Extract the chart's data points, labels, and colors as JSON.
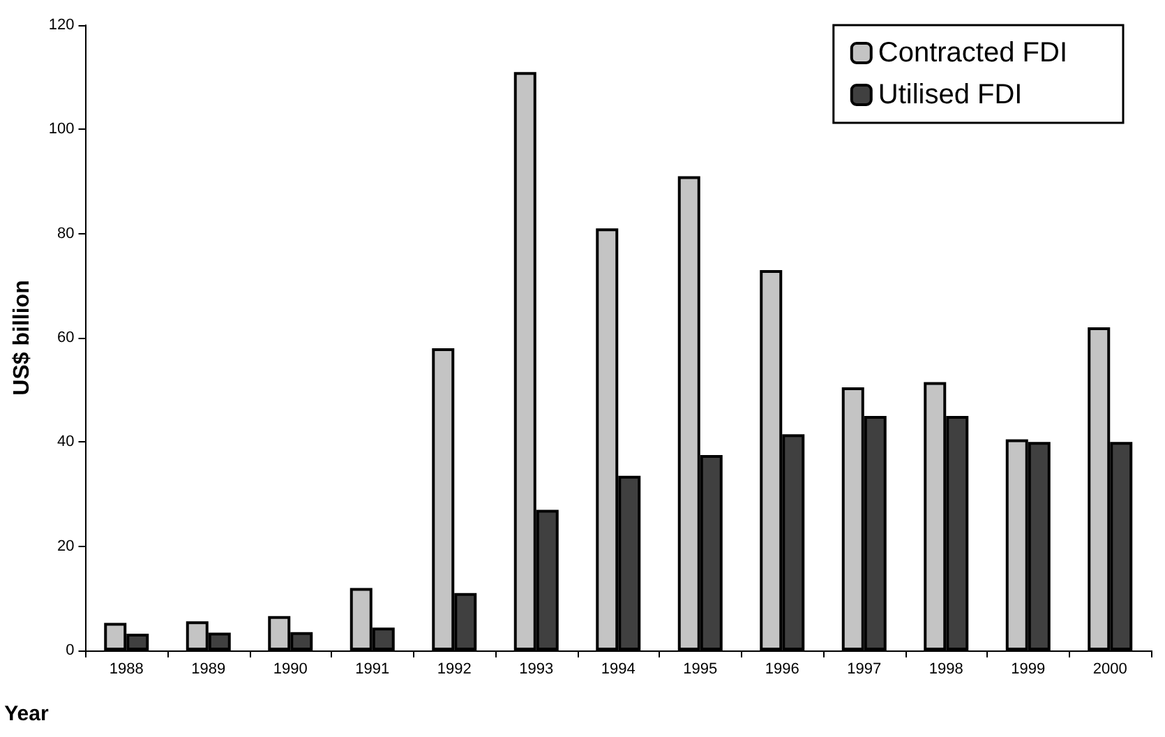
{
  "chart_data": {
    "type": "bar",
    "xlabel": "Year",
    "ylabel": "US$ billion",
    "categories": [
      "1988",
      "1989",
      "1990",
      "1991",
      "1992",
      "1993",
      "1994",
      "1995",
      "1996",
      "1997",
      "1998",
      "1999",
      "2000"
    ],
    "series": [
      {
        "name": "Contracted FDI",
        "color": "#c4c4c4",
        "values": [
          5.3,
          5.6,
          6.6,
          12,
          58,
          111,
          81,
          91,
          73,
          50.5,
          51.5,
          40.5,
          62
        ]
      },
      {
        "name": "Utilised FDI",
        "color": "#404040",
        "values": [
          3.2,
          3.4,
          3.5,
          4.4,
          11,
          27,
          33.5,
          37.5,
          41.5,
          45,
          45,
          40,
          40
        ]
      }
    ],
    "ylim": [
      0,
      120
    ],
    "yticks": [
      0,
      20,
      40,
      60,
      80,
      100,
      120
    ],
    "grid": false,
    "legend": "top right"
  }
}
